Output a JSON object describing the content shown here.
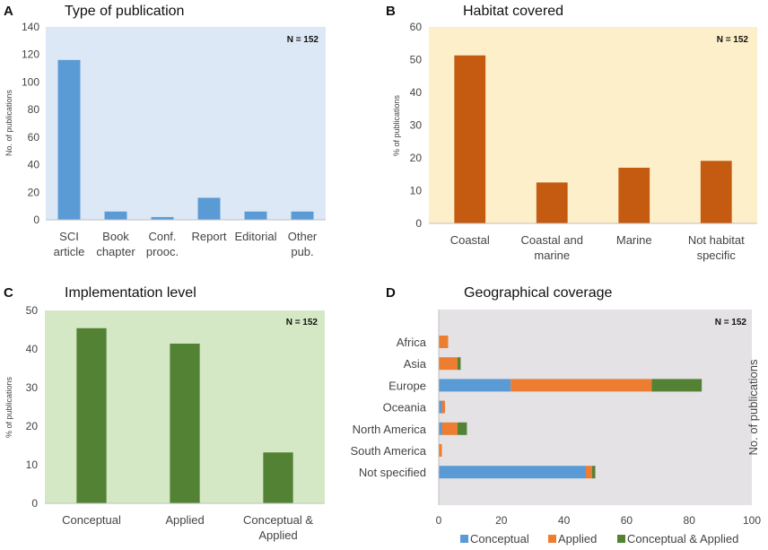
{
  "chart_data": [
    {
      "id": "A",
      "letter": "A",
      "type": "bar",
      "title": "Type of publication",
      "ylabel": "No. of publications",
      "n_label": "N = 152",
      "ylim": [
        0,
        140
      ],
      "yticks": [
        0,
        20,
        40,
        60,
        80,
        100,
        120,
        140
      ],
      "categories": [
        [
          "SCI",
          "article"
        ],
        [
          "Book",
          "chapter"
        ],
        [
          "Conf.",
          "prooc."
        ],
        [
          "Report"
        ],
        [
          "Editorial"
        ],
        [
          "Other",
          "pub."
        ]
      ],
      "values": [
        116,
        6,
        2,
        16,
        6,
        6
      ],
      "colors": {
        "background": "#dce8f5",
        "bar": "#5b9bd5"
      }
    },
    {
      "id": "B",
      "letter": "B",
      "type": "bar",
      "title": "Habitat covered",
      "ylabel": "% of publications",
      "n_label": "N = 152",
      "ylim": [
        0,
        60
      ],
      "yticks": [
        0,
        10,
        20,
        30,
        40,
        50,
        60
      ],
      "categories": [
        [
          "Coastal"
        ],
        [
          "Coastal and",
          "marine"
        ],
        [
          "Marine"
        ],
        [
          "Not habitat",
          "specific"
        ]
      ],
      "values": [
        51.3,
        12.5,
        17,
        19.1
      ],
      "colors": {
        "background": "#fdefc9",
        "bar": "#c55a11"
      }
    },
    {
      "id": "C",
      "letter": "C",
      "type": "bar",
      "title": "Implementation level",
      "ylabel": "% of publications",
      "n_label": "N = 152",
      "ylim": [
        0,
        50
      ],
      "yticks": [
        0,
        10,
        20,
        30,
        40,
        50
      ],
      "categories": [
        [
          "Conceptual"
        ],
        [
          "Applied"
        ],
        [
          "Conceptual &",
          "Applied"
        ]
      ],
      "values": [
        45.4,
        41.4,
        13.2
      ],
      "colors": {
        "background": "#d5e8c5",
        "bar": "#548235"
      }
    },
    {
      "id": "D",
      "letter": "D",
      "type": "bar",
      "orientation": "horizontal",
      "stacked": true,
      "title": "Geographical coverage",
      "xlabel": "No. of publications",
      "n_label": "N = 152",
      "xlim": [
        0,
        100
      ],
      "xticks": [
        0,
        20,
        40,
        60,
        80,
        100
      ],
      "categories": [
        "Africa",
        "Asia",
        "Europe",
        "Oceania",
        "North America",
        "South America",
        "Not specified"
      ],
      "series": [
        {
          "name": "Conceptual",
          "color": "#5b9bd5",
          "values": [
            0,
            0,
            23,
            1,
            1,
            0,
            47
          ]
        },
        {
          "name": "Applied",
          "color": "#ed7d31",
          "values": [
            3,
            6,
            45,
            1,
            5,
            1,
            2
          ]
        },
        {
          "name": "Conceptual & Applied",
          "color": "#548235",
          "values": [
            0,
            1,
            16,
            0,
            3,
            0,
            1
          ]
        }
      ],
      "colors": {
        "background": "#e4e2e4"
      }
    }
  ]
}
